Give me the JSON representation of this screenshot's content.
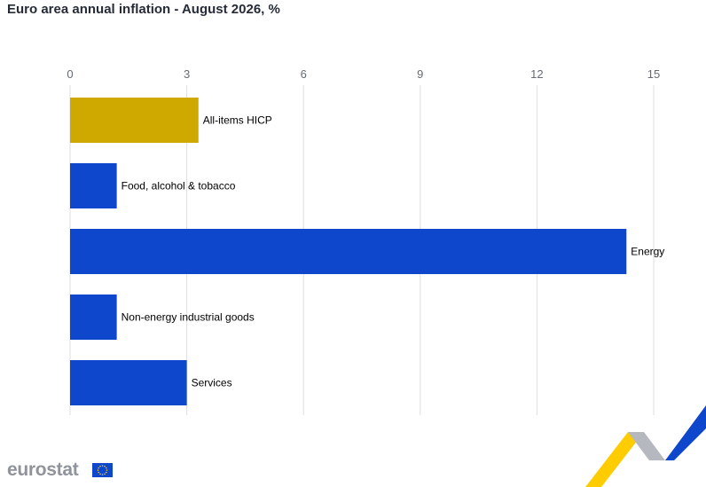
{
  "title": "Euro area annual inflation - August 2026, %",
  "footer": {
    "logo_text": "eurostat"
  },
  "colors": {
    "highlight": "#cfa800",
    "series": "#0e47cb",
    "grid": "#dcdde3",
    "ribbon_yellow": "#ffcc00",
    "ribbon_grey": "#b5b8bf",
    "ribbon_blue": "#0e47cb",
    "flag_blue": "#0e47cb",
    "flag_star": "#ffcc00"
  },
  "chart_data": {
    "type": "bar",
    "orientation": "horizontal",
    "title": "Euro area annual inflation - August 2026, %",
    "categories": [
      "All-items HICP",
      "Food, alcohol & tobacco",
      "Energy",
      "Non-energy industrial goods",
      "Services"
    ],
    "values": [
      3.3,
      1.2,
      14.3,
      1.2,
      3.0
    ],
    "highlight_index": 0,
    "xlim": [
      0,
      15
    ],
    "xticks": [
      0,
      3,
      6,
      9,
      12,
      15
    ],
    "x_axis_position": "top",
    "grid": true,
    "legend": "none"
  }
}
